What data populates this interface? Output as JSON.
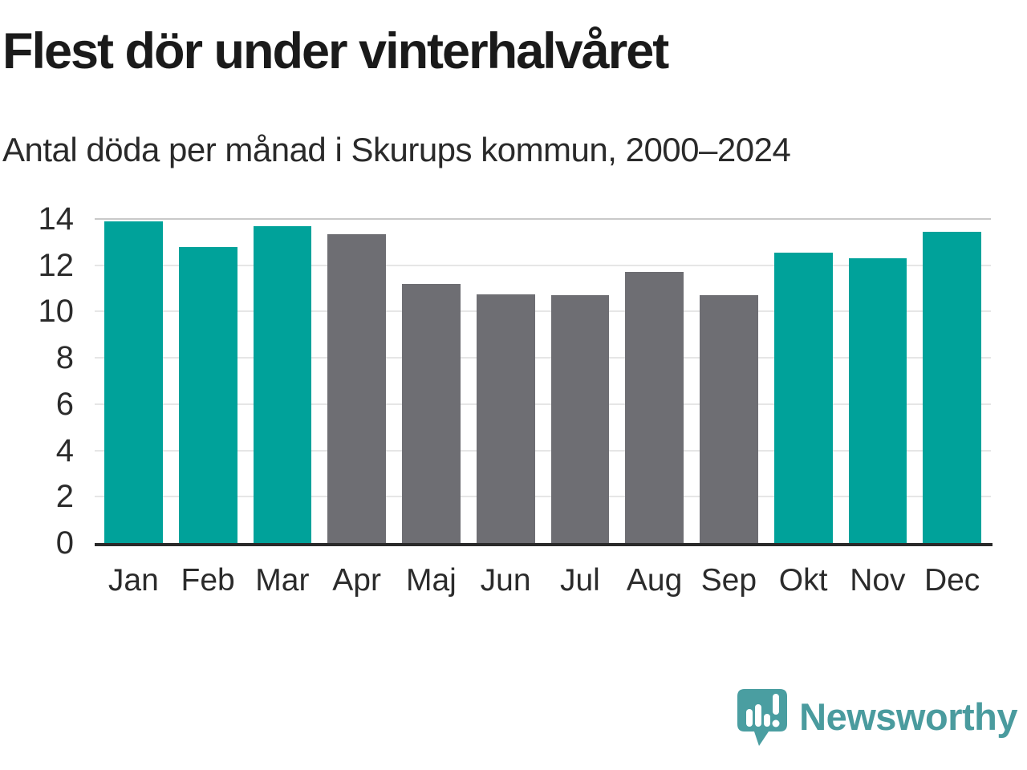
{
  "header": {
    "title": "Flest dör under vinterhalvåret",
    "subtitle": "Antal döda per månad i Skurups kommun, 2000–2024"
  },
  "chart_data": {
    "type": "bar",
    "categories": [
      "Jan",
      "Feb",
      "Mar",
      "Apr",
      "Maj",
      "Jun",
      "Jul",
      "Aug",
      "Sep",
      "Okt",
      "Nov",
      "Dec"
    ],
    "values": [
      13.9,
      12.8,
      13.7,
      13.35,
      11.2,
      10.75,
      10.7,
      11.7,
      10.7,
      12.55,
      12.3,
      13.45
    ],
    "bar_roles": [
      "highlight",
      "highlight",
      "highlight",
      "muted",
      "muted",
      "muted",
      "muted",
      "muted",
      "muted",
      "highlight",
      "highlight",
      "highlight"
    ],
    "title": "Flest dör under vinterhalvåret",
    "subtitle": "Antal döda per månad i Skurups kommun, 2000–2024",
    "xlabel": "",
    "ylabel": "",
    "ylim": [
      0,
      14
    ],
    "yticks": [
      0,
      2,
      4,
      6,
      8,
      10,
      12,
      14
    ],
    "grid": true,
    "legend": "none",
    "palette": {
      "highlight": "#00a29a",
      "muted": "#6e6e73",
      "gridline": "#e6e6e6",
      "gridline_top": "#c9c9c9",
      "axis_line": "#2a2a2a",
      "text": "#2b2b2b"
    }
  },
  "branding": {
    "wordmark": "Newsworthy",
    "logo_icon": "newsworthy-speech-bubble-chart-icon",
    "logo_color": "#4a9ea1",
    "wordmark_color": "#4a9b9e"
  }
}
